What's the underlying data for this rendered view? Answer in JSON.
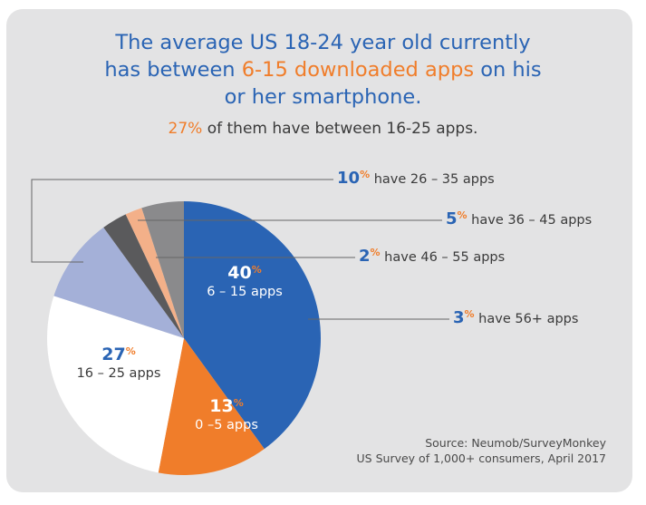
{
  "headline": {
    "line1": "The average US 18-24 year old currently",
    "line2_pre": "has between ",
    "line2_highlight": "6-15 downloaded apps",
    "line2_post": " on his",
    "line3": "or her smartphone."
  },
  "subline": {
    "highlight": "27%",
    "rest": " of them have between 16-25 apps."
  },
  "callouts": [
    {
      "number": "10",
      "pct": "%",
      "text": "have 26 – 35 apps"
    },
    {
      "number": "5",
      "pct": "%",
      "text": "have 36 – 45 apps"
    },
    {
      "number": "2",
      "pct": "%",
      "text": "have 46 – 55 apps"
    },
    {
      "number": "3",
      "pct": "%",
      "text": "have 56+ apps"
    }
  ],
  "slice_labels": [
    {
      "number": "40",
      "pct": "%",
      "text": "6 – 15 apps"
    },
    {
      "number": "13",
      "pct": "%",
      "text": "0 –5 apps"
    },
    {
      "number": "27",
      "pct": "%",
      "text": "16 – 25 apps"
    }
  ],
  "source": {
    "line1": "Source: Neumob/SurveyMonkey",
    "line2": "US Survey of 1,000+ consumers, April 2017"
  },
  "colors": {
    "card_background": "#e3e3e4",
    "headline_blue": "#2a64b4",
    "highlight_orange": "#f07d2a"
  },
  "chart_data": {
    "type": "pie",
    "start": "12 o'clock",
    "direction": "clockwise",
    "slices": [
      {
        "label": "6 – 15 apps",
        "value": 40,
        "color": "#2a64b4"
      },
      {
        "label": "0 –5 apps",
        "value": 13,
        "color": "#f07d2a"
      },
      {
        "label": "16 – 25 apps",
        "value": 27,
        "color": "#ffffff"
      },
      {
        "label": "26 – 35 apps",
        "value": 10,
        "color": "#a4b0d8"
      },
      {
        "label": "56+ apps",
        "value": 3,
        "color": "#5a5a5c"
      },
      {
        "label": "46 – 55 apps",
        "value": 2,
        "color": "#f3b089"
      },
      {
        "label": "36 – 45 apps",
        "value": 5,
        "color": "#8a8a8c"
      }
    ]
  }
}
